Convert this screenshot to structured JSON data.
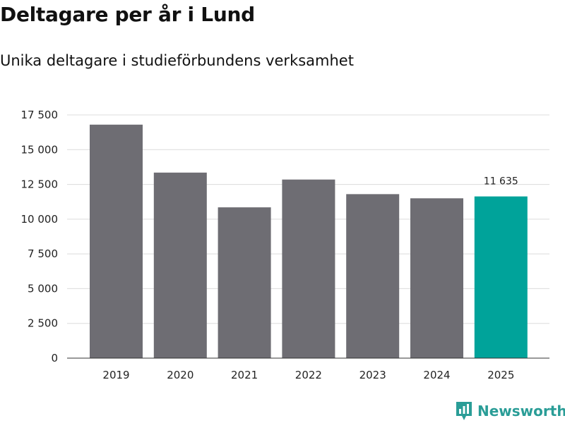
{
  "chart_data": {
    "type": "bar",
    "title": "Deltagare per år i Lund",
    "subtitle": "Unika deltagare i studieförbundens verksamhet",
    "categories": [
      "2019",
      "2020",
      "2021",
      "2022",
      "2023",
      "2024",
      "2025"
    ],
    "values": [
      16800,
      13350,
      10850,
      12850,
      11800,
      11500,
      11635
    ],
    "ylim": [
      0,
      17500
    ],
    "yticks": [
      0,
      2500,
      5000,
      7500,
      10000,
      12500,
      15000,
      17500
    ],
    "ytick_labels": [
      "0",
      "2 500",
      "5 000",
      "7 500",
      "10 000",
      "12 500",
      "15 000",
      "17 500"
    ],
    "grid": true,
    "colors": {
      "default": "#6e6d73",
      "highlight": "#00a39a"
    },
    "highlight_index": 6,
    "data_labels": [
      {
        "index": 6,
        "text": "11 635"
      }
    ]
  },
  "branding": {
    "name": "Newsworthy",
    "logo_icon": "bar-chart-badge-icon",
    "color": "#2a9d97"
  }
}
